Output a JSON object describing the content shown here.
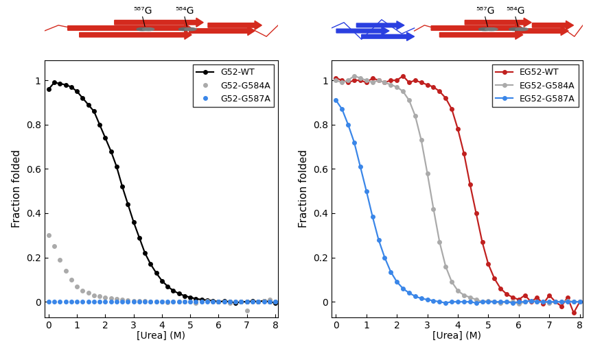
{
  "chart_data": [
    {
      "type": "scatter",
      "x_label": "[Urea] (M)",
      "y_label": "Fraction folded",
      "xlim": [
        -0.15,
        8.1
      ],
      "ylim": [
        -0.07,
        1.09
      ],
      "xticks": [
        0,
        1,
        2,
        3,
        4,
        5,
        6,
        7,
        8
      ],
      "yticks": [
        0,
        0.2,
        0.4,
        0.6,
        0.8,
        1
      ],
      "legend": "upper right",
      "annotations": [
        "⁵⁸⁷G",
        "⁵⁸⁴G"
      ],
      "series": [
        {
          "name": "G52-WT",
          "color": "#000000",
          "marker": "circle",
          "line_style": "solid",
          "x": [
            0,
            0.2,
            0.4,
            0.6,
            0.8,
            1.0,
            1.2,
            1.4,
            1.6,
            1.8,
            2.0,
            2.2,
            2.4,
            2.6,
            2.8,
            3.0,
            3.2,
            3.4,
            3.6,
            3.8,
            4.0,
            4.2,
            4.4,
            4.6,
            4.8,
            5.0,
            5.2,
            5.4,
            5.6,
            5.8,
            6.0,
            6.2,
            6.4,
            6.6,
            6.8,
            7.0,
            7.2,
            7.4,
            7.6,
            7.8,
            8.0
          ],
          "values": [
            0.96,
            0.99,
            0.985,
            0.98,
            0.97,
            0.95,
            0.92,
            0.89,
            0.86,
            0.8,
            0.74,
            0.68,
            0.61,
            0.52,
            0.44,
            0.36,
            0.29,
            0.22,
            0.17,
            0.13,
            0.095,
            0.07,
            0.05,
            0.037,
            0.027,
            0.02,
            0.014,
            0.01,
            0.007,
            0.005,
            0.0,
            0.003,
            0.0,
            -0.005,
            0.0,
            0.0,
            0.003,
            0.0,
            0.005,
            0.0,
            -0.005
          ]
        },
        {
          "name": "G52-G584A",
          "color": "#aaaaaa",
          "marker": "circle",
          "line_style": "none",
          "x": [
            0,
            0.2,
            0.4,
            0.6,
            0.8,
            1.0,
            1.2,
            1.4,
            1.6,
            1.8,
            2.0,
            2.2,
            2.4,
            2.6,
            2.8,
            3.0,
            3.2,
            3.4,
            3.6,
            3.8,
            4.0,
            4.2,
            4.4,
            4.6,
            4.8,
            5.0,
            5.2,
            5.4,
            5.6,
            5.8,
            6.0,
            6.2,
            6.4,
            6.6,
            6.8,
            7.0,
            7.2,
            7.4,
            7.6,
            7.8,
            8.0
          ],
          "values": [
            0.3,
            0.25,
            0.19,
            0.14,
            0.1,
            0.07,
            0.05,
            0.04,
            0.03,
            0.025,
            0.02,
            0.015,
            0.012,
            0.01,
            0.008,
            0.005,
            0.005,
            0.003,
            0.0,
            0.002,
            0.0,
            -0.003,
            0.0,
            0.002,
            0.0,
            0.0,
            -0.005,
            0.0,
            0.003,
            0.0,
            0.0,
            0.0,
            -0.005,
            0.0,
            0.002,
            -0.04,
            0.0,
            0.0,
            0.005,
            0.01,
            0.0
          ]
        },
        {
          "name": "G52-G587A",
          "color": "#3a86e8",
          "marker": "circle",
          "line_style": "none",
          "x": [
            0,
            0.2,
            0.4,
            0.6,
            0.8,
            1.0,
            1.2,
            1.4,
            1.6,
            1.8,
            2.0,
            2.2,
            2.4,
            2.6,
            2.8,
            3.0,
            3.2,
            3.4,
            3.6,
            3.8,
            4.0,
            4.2,
            4.4,
            4.6,
            4.8,
            5.0,
            5.2,
            5.4,
            5.6,
            5.8,
            6.0,
            6.2,
            6.4,
            6.6,
            6.8,
            7.0,
            7.2,
            7.4,
            7.6,
            7.8,
            8.0
          ],
          "values": [
            0,
            0,
            0,
            0,
            0,
            0,
            0,
            0,
            0,
            0,
            0,
            0,
            0,
            0,
            0,
            0,
            0,
            0,
            0,
            0,
            0,
            0,
            0,
            0,
            0,
            0,
            0,
            0,
            0,
            0,
            0,
            0,
            0,
            0,
            0,
            0,
            0,
            0,
            0,
            0,
            0
          ]
        }
      ]
    },
    {
      "type": "scatter",
      "x_label": "[Urea] (M)",
      "y_label": "Fraction folded",
      "xlim": [
        -0.15,
        8.1
      ],
      "ylim": [
        -0.07,
        1.09
      ],
      "xticks": [
        0,
        1,
        2,
        3,
        4,
        5,
        6,
        7,
        8
      ],
      "yticks": [
        0,
        0.2,
        0.4,
        0.6,
        0.8,
        1
      ],
      "legend": "upper right",
      "annotations": [
        "⁵⁸⁷G",
        "⁵⁸⁴G"
      ],
      "series": [
        {
          "name": "EG52-WT",
          "color": "#c0201f",
          "marker": "circle",
          "line_style": "solid",
          "x": [
            0,
            0.2,
            0.4,
            0.6,
            0.8,
            1.0,
            1.2,
            1.4,
            1.6,
            1.8,
            2.0,
            2.2,
            2.4,
            2.6,
            2.8,
            3.0,
            3.2,
            3.4,
            3.6,
            3.8,
            4.0,
            4.2,
            4.4,
            4.6,
            4.8,
            5.0,
            5.2,
            5.4,
            5.6,
            5.8,
            6.0,
            6.2,
            6.4,
            6.6,
            6.8,
            7.0,
            7.2,
            7.4,
            7.6,
            7.8,
            8.0
          ],
          "values": [
            1.01,
            1.0,
            0.99,
            1.0,
            1.0,
            0.99,
            1.01,
            1.0,
            0.99,
            1.0,
            1.0,
            1.02,
            0.99,
            1.0,
            0.99,
            0.98,
            0.97,
            0.95,
            0.92,
            0.87,
            0.78,
            0.67,
            0.53,
            0.4,
            0.27,
            0.17,
            0.105,
            0.06,
            0.035,
            0.02,
            0.01,
            0.03,
            0.0,
            0.02,
            -0.01,
            0.03,
            0.0,
            -0.02,
            0.02,
            -0.05,
            0.0
          ]
        },
        {
          "name": "EG52-G584A",
          "color": "#aaaaaa",
          "marker": "circle",
          "line_style": "solid",
          "x": [
            0,
            0.2,
            0.4,
            0.6,
            0.8,
            1.0,
            1.2,
            1.4,
            1.6,
            1.8,
            2.0,
            2.2,
            2.4,
            2.6,
            2.8,
            3.0,
            3.2,
            3.4,
            3.6,
            3.8,
            4.0,
            4.2,
            4.4,
            4.6,
            4.8,
            5.0,
            5.2,
            5.4,
            5.6,
            5.8,
            6.0,
            6.2,
            6.4,
            6.6,
            6.8,
            7.0,
            7.2,
            7.4,
            7.6,
            7.8,
            8.0
          ],
          "values": [
            1.0,
            0.99,
            1.0,
            1.02,
            1.01,
            1.0,
            0.99,
            1.0,
            0.99,
            0.98,
            0.97,
            0.95,
            0.91,
            0.84,
            0.73,
            0.58,
            0.42,
            0.27,
            0.16,
            0.09,
            0.05,
            0.03,
            0.02,
            0.01,
            0.0,
            0.005,
            0.0,
            -0.005,
            0.0,
            0.0,
            -0.01,
            0.0,
            0.005,
            0.0,
            0.0,
            -0.005,
            0.0,
            0.0,
            0.005,
            0.0,
            0.0
          ]
        },
        {
          "name": "EG52-G587A",
          "color": "#3a86e8",
          "marker": "circle",
          "line_style": "solid",
          "x": [
            0,
            0.2,
            0.4,
            0.6,
            0.8,
            1.0,
            1.2,
            1.4,
            1.6,
            1.8,
            2.0,
            2.2,
            2.4,
            2.6,
            2.8,
            3.0,
            3.2,
            3.4,
            3.6,
            3.8,
            4.0,
            4.2,
            4.4,
            4.6,
            4.8,
            5.0,
            5.2,
            5.4,
            5.6,
            5.8,
            6.0,
            6.2,
            6.4,
            6.6,
            6.8,
            7.0,
            7.2,
            7.4,
            7.6,
            7.8,
            8.0
          ],
          "values": [
            0.91,
            0.87,
            0.8,
            0.72,
            0.61,
            0.5,
            0.385,
            0.28,
            0.2,
            0.135,
            0.09,
            0.06,
            0.04,
            0.025,
            0.015,
            0.01,
            0.005,
            0.0,
            -0.005,
            0.0,
            0.0,
            0.0,
            0.0,
            -0.005,
            0.0,
            0.0,
            0.0,
            0.0,
            0.0,
            -0.005,
            0.0,
            0.0,
            0.005,
            0.0,
            0.0,
            0.0,
            0.0,
            0.0,
            0.0,
            0.0,
            0.0
          ]
        }
      ]
    }
  ]
}
